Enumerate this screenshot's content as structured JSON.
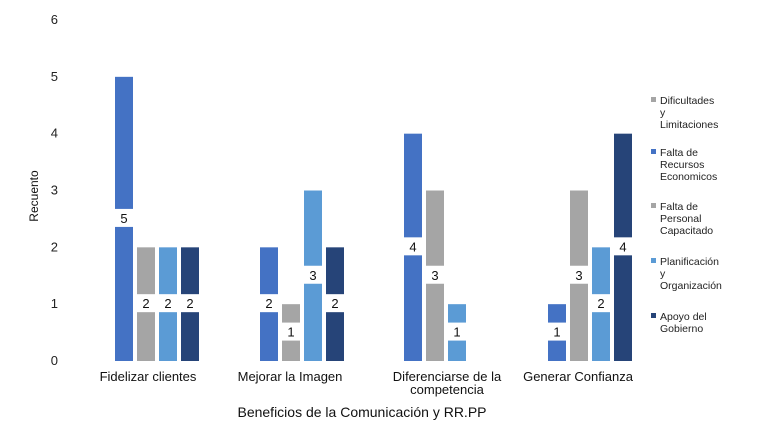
{
  "chart_data": {
    "type": "bar",
    "title": "",
    "xlabel": "Beneficios de la Comunicación y RR.PP",
    "ylabel": "Recuento",
    "ylim": [
      0,
      6
    ],
    "yticks": [
      0,
      1,
      2,
      3,
      4,
      5,
      6
    ],
    "grid": false,
    "legend_position": "right",
    "categories": [
      [
        "Fidelizar clientes"
      ],
      [
        "Mejorar la Imagen"
      ],
      [
        "Diferenciarse de la",
        "competencia"
      ],
      [
        "Generar Confianza"
      ]
    ],
    "series": [
      {
        "name": [
          "Dificultades",
          "y",
          "Limitaciones"
        ],
        "color": "#a5a5a5",
        "values": [
          2,
          1,
          3,
          3
        ]
      },
      {
        "name": [
          "Falta de",
          "Recursos",
          "Economicos"
        ],
        "color": "#4472c4",
        "values": [
          5,
          2,
          4,
          1
        ]
      },
      {
        "name": [
          "Falta de",
          "Personal",
          "Capacitado"
        ],
        "color": "#a5a5a5",
        "values": [
          2,
          1,
          3,
          3
        ]
      },
      {
        "name": [
          "Planificación",
          "y",
          "Organización"
        ],
        "color": "#5b9bd5",
        "values": [
          2,
          3,
          1,
          2
        ]
      },
      {
        "name": [
          "Apoyo del",
          "Gobierno"
        ],
        "color": "#264478",
        "values": [
          2,
          2,
          null,
          4
        ]
      }
    ],
    "bars_drawn": [
      "Falta de Recursos Economicos",
      "Falta de Personal Capacitado",
      "Planificación y Organización",
      "Apoyo del Gobierno"
    ],
    "data_labels": true
  }
}
